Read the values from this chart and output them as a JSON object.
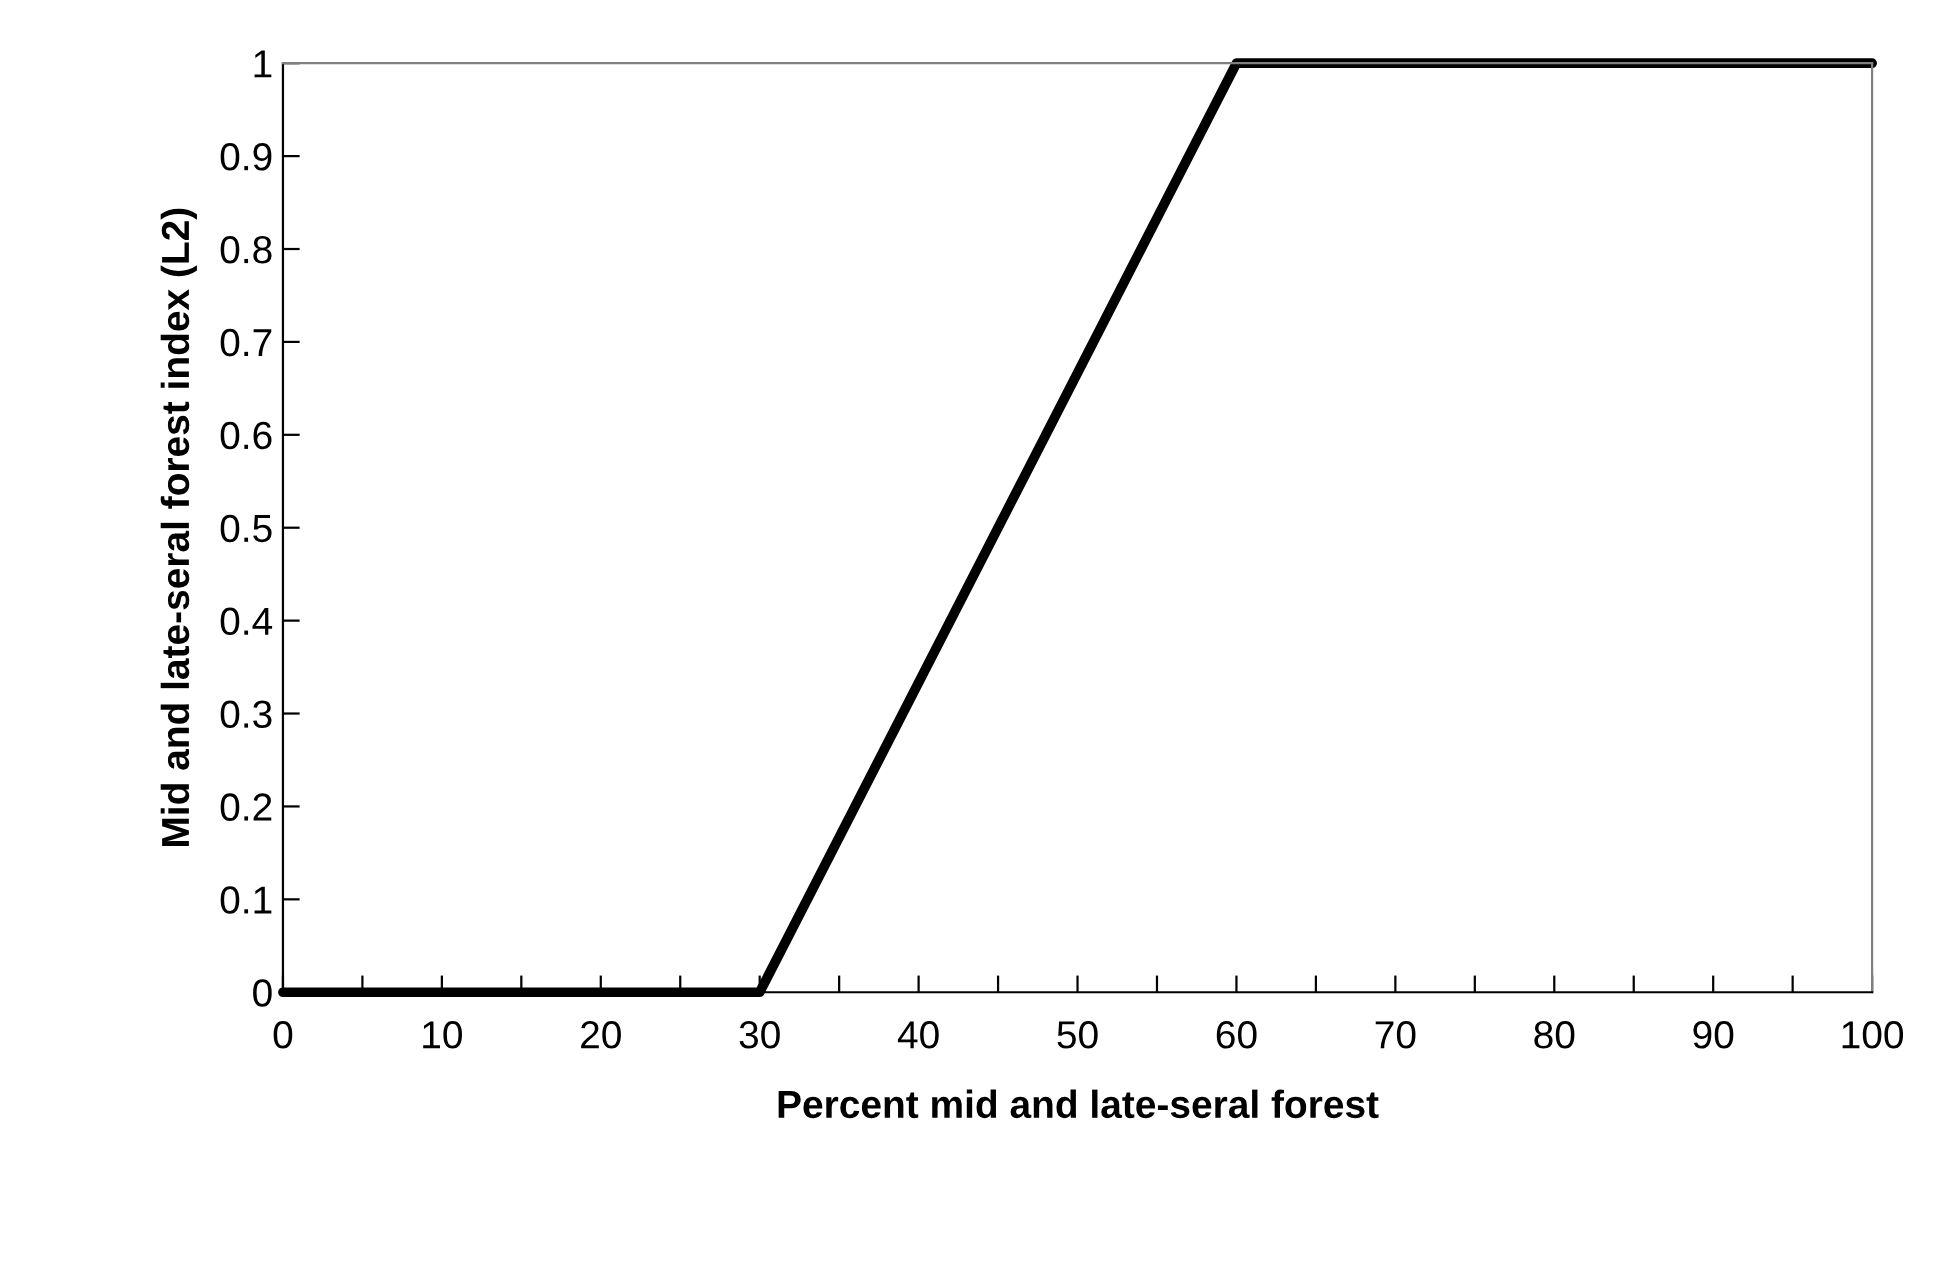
{
  "chart_data": {
    "type": "line",
    "xlabel": "Percent mid and late-seral forest",
    "ylabel": "Mid and late-seral forest index (L2)",
    "x": [
      0,
      30,
      60,
      100
    ],
    "series": [
      {
        "color": "#000000",
        "values": [
          0,
          0,
          1,
          1
        ]
      }
    ],
    "xlim": [
      0,
      100
    ],
    "ylim": [
      0,
      1
    ],
    "xticks": [
      0,
      {
        "value": 5,
        "label": null
      },
      10,
      {
        "value": 15,
        "label": null
      },
      20,
      {
        "value": 25,
        "label": null
      },
      30,
      {
        "value": 35,
        "label": null
      },
      40,
      {
        "value": 45,
        "label": null
      },
      50,
      {
        "value": 55,
        "label": null
      },
      60,
      {
        "value": 65,
        "label": null
      },
      70,
      {
        "value": 75,
        "label": null
      },
      80,
      {
        "value": 85,
        "label": null
      },
      90,
      {
        "value": 95,
        "label": null
      },
      100
    ],
    "yticks": [
      0,
      0.1,
      0.2,
      0.3,
      0.4,
      0.5,
      0.6,
      0.7,
      0.8,
      0.9,
      1
    ],
    "grid": false,
    "legend": false,
    "marker": "none",
    "line_style": "solid"
  }
}
